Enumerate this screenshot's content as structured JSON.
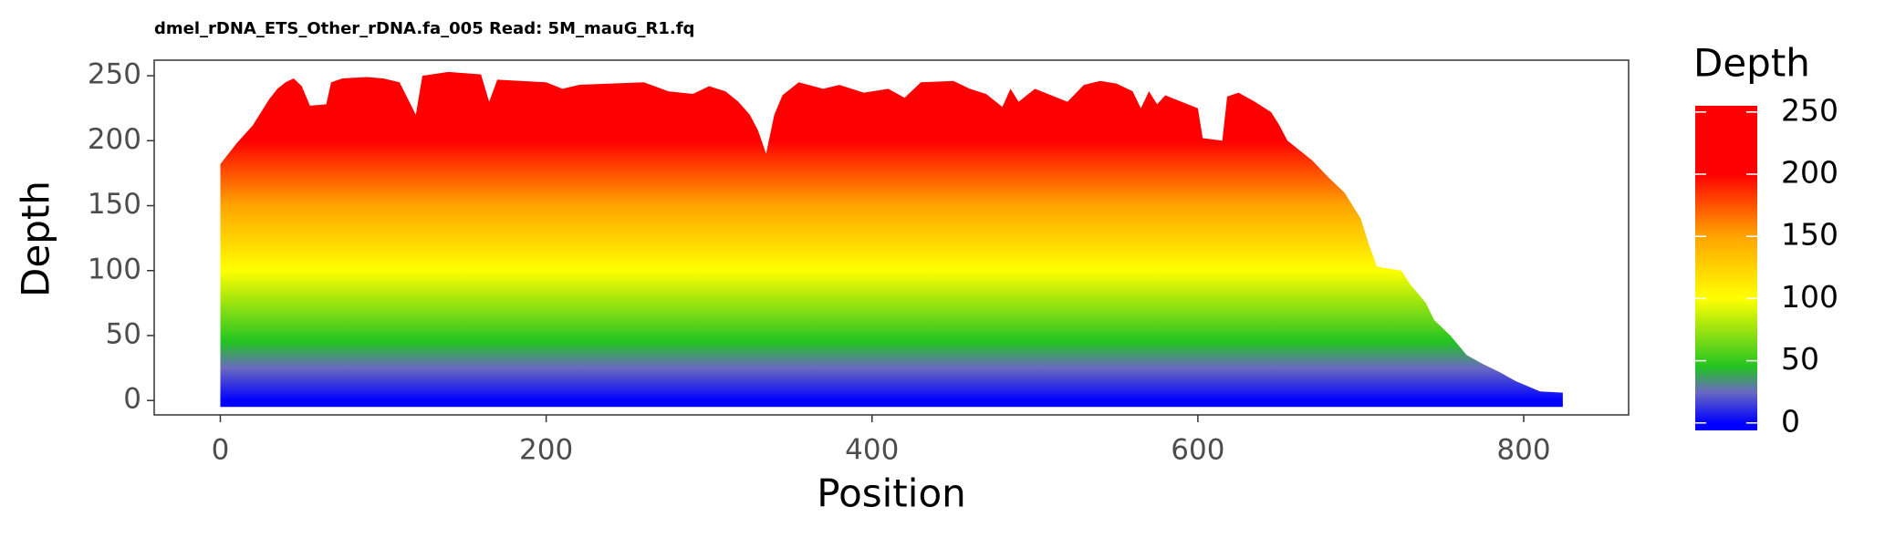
{
  "chart_data": {
    "type": "area",
    "title": "dmel_rDNA_ETS_Other_rDNA.fa_005 Read: 5M_mauG_R1.fq",
    "xlabel": "Position",
    "ylabel": "Depth",
    "x": [
      0,
      5,
      10,
      15,
      20,
      25,
      30,
      35,
      40,
      45,
      50,
      55,
      65,
      68,
      75,
      90,
      100,
      110,
      120,
      124,
      140,
      160,
      165,
      170,
      200,
      210,
      220,
      240,
      260,
      275,
      290,
      300,
      310,
      318,
      325,
      330,
      335,
      340,
      345,
      355,
      370,
      380,
      395,
      410,
      420,
      430,
      450,
      460,
      470,
      480,
      485,
      490,
      500,
      510,
      520,
      530,
      540,
      550,
      560,
      565,
      570,
      575,
      580,
      590,
      600,
      603,
      615,
      618,
      625,
      635,
      645,
      650,
      655,
      660,
      670,
      680,
      690,
      700,
      705,
      710,
      725,
      730,
      740,
      745,
      755,
      765,
      775,
      785,
      795,
      810,
      824
    ],
    "values": [
      182,
      190,
      198,
      205,
      212,
      222,
      232,
      240,
      245,
      248,
      242,
      227,
      228,
      245,
      248,
      249,
      248,
      245,
      220,
      250,
      253,
      251,
      230,
      247,
      245,
      240,
      243,
      244,
      245,
      238,
      236,
      242,
      238,
      230,
      220,
      208,
      190,
      220,
      235,
      245,
      240,
      243,
      237,
      240,
      233,
      245,
      246,
      240,
      236,
      226,
      240,
      230,
      240,
      235,
      230,
      243,
      246,
      244,
      238,
      225,
      238,
      228,
      235,
      230,
      225,
      202,
      200,
      234,
      237,
      230,
      222,
      212,
      200,
      195,
      185,
      172,
      160,
      140,
      120,
      103,
      100,
      90,
      75,
      62,
      50,
      35,
      28,
      22,
      15,
      7,
      6
    ],
    "xlim": [
      -40.6,
      864.4
    ],
    "ylim": [
      -11.1,
      262
    ],
    "xticks": [
      0,
      200,
      400,
      600,
      800
    ],
    "yticks": [
      0,
      50,
      100,
      150,
      200,
      250
    ],
    "colorscale": [
      [
        0,
        "#0000ff"
      ],
      [
        25,
        "#6a6ac0"
      ],
      [
        45,
        "#22c322"
      ],
      [
        100,
        "#ffff00"
      ],
      [
        150,
        "#ffa500"
      ],
      [
        200,
        "#ff0000"
      ],
      [
        255,
        "#ff0000"
      ]
    ],
    "colorbar": {
      "title": "Depth",
      "lim": [
        -6,
        255
      ],
      "ticks": [
        0,
        50,
        100,
        150,
        200,
        250
      ]
    }
  }
}
